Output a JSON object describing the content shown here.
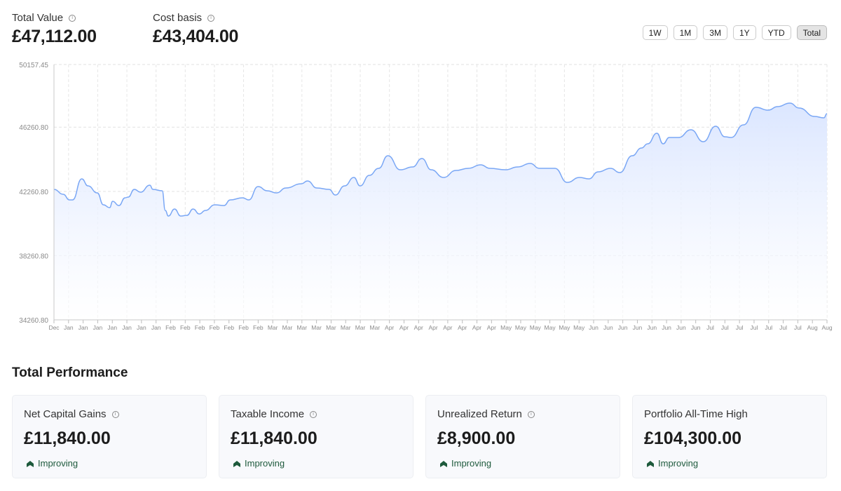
{
  "summary": {
    "total_value_label": "Total Value",
    "total_value": "£47,112.00",
    "cost_basis_label": "Cost basis",
    "cost_basis": "£43,404.00"
  },
  "ranges": [
    {
      "label": "1W"
    },
    {
      "label": "1M"
    },
    {
      "label": "3M"
    },
    {
      "label": "1Y"
    },
    {
      "label": "YTD"
    },
    {
      "label": "Total",
      "active": true
    }
  ],
  "chart_data": {
    "type": "area",
    "ylim": [
      34260.8,
      50157.45
    ],
    "y_ticks": [
      "50157.45",
      "46260.80",
      "42260.80",
      "38260.80",
      "34260.80"
    ],
    "y_tick_values": [
      50157.45,
      46260.8,
      42260.8,
      38260.8,
      34260.8
    ],
    "x_ticks": [
      "Dec",
      "Jan",
      "Jan",
      "Jan",
      "Jan",
      "Jan",
      "Jan",
      "Jan",
      "Feb",
      "Feb",
      "Feb",
      "Feb",
      "Feb",
      "Feb",
      "Feb",
      "Mar",
      "Mar",
      "Mar",
      "Mar",
      "Mar",
      "Mar",
      "Mar",
      "Mar",
      "Apr",
      "Apr",
      "Apr",
      "Apr",
      "Apr",
      "Apr",
      "Apr",
      "Apr",
      "May",
      "May",
      "May",
      "May",
      "May",
      "May",
      "Jun",
      "Jun",
      "Jun",
      "Jun",
      "Jun",
      "Jun",
      "Jun",
      "Jun",
      "Jul",
      "Jul",
      "Jul",
      "Jul",
      "Jul",
      "Jul",
      "Jul",
      "Aug",
      "Aug"
    ],
    "x": [
      0,
      3,
      5,
      6,
      9,
      11,
      14,
      16,
      18,
      19,
      21,
      23,
      24,
      26,
      28,
      31,
      32,
      35,
      36,
      37,
      39,
      41,
      43,
      45,
      47,
      49,
      52,
      55,
      57,
      61,
      63,
      66,
      69,
      72,
      75,
      80,
      82,
      85,
      89,
      91,
      94,
      97,
      99,
      102,
      105,
      108,
      112,
      116,
      119,
      122,
      126,
      130,
      134,
      138,
      141,
      146,
      150,
      154,
      157,
      162,
      166,
      170,
      173,
      176,
      180,
      183,
      187,
      190,
      192,
      195,
      197,
      199,
      202,
      206,
      210,
      214,
      217,
      219,
      223,
      227,
      231,
      234,
      238,
      241,
      246,
      249,
      250
    ],
    "values": [
      42384,
      42078,
      41729,
      41729,
      43039,
      42602,
      42165,
      41423,
      41248,
      41641,
      41379,
      41860,
      41903,
      42384,
      42209,
      42646,
      42384,
      42296,
      41074,
      40724,
      41161,
      40724,
      40768,
      41161,
      40855,
      41074,
      41423,
      41379,
      41729,
      41860,
      41729,
      42558,
      42296,
      42165,
      42471,
      42733,
      42908,
      42471,
      42384,
      42034,
      42602,
      43126,
      42602,
      43257,
      43694,
      44480,
      43606,
      43781,
      44305,
      43606,
      43126,
      43563,
      43694,
      43912,
      43694,
      43606,
      43781,
      43999,
      43694,
      43694,
      42820,
      43126,
      43039,
      43475,
      43694,
      43432,
      44480,
      44960,
      45222,
      45877,
      45222,
      45615,
      45615,
      46096,
      45353,
      46314,
      45659,
      45615,
      46401,
      47493,
      47318,
      47537,
      47755,
      47449,
      46925,
      46838,
      47100
    ],
    "line_color": "#7aa7f5",
    "fill_color": "#dbe6ff",
    "grid": true
  },
  "performance": {
    "title": "Total Performance",
    "cards": [
      {
        "label": "Net Capital Gains",
        "value": "£11,840.00",
        "trend": "Improving",
        "info": true
      },
      {
        "label": "Taxable Income",
        "value": "£11,840.00",
        "trend": "Improving",
        "info": true
      },
      {
        "label": "Unrealized Return",
        "value": "£8,900.00",
        "trend": "Improving",
        "info": true
      },
      {
        "label": "Portfolio All-Time High",
        "value": "£104,300.00",
        "trend": "Improving",
        "info": false
      }
    ]
  }
}
